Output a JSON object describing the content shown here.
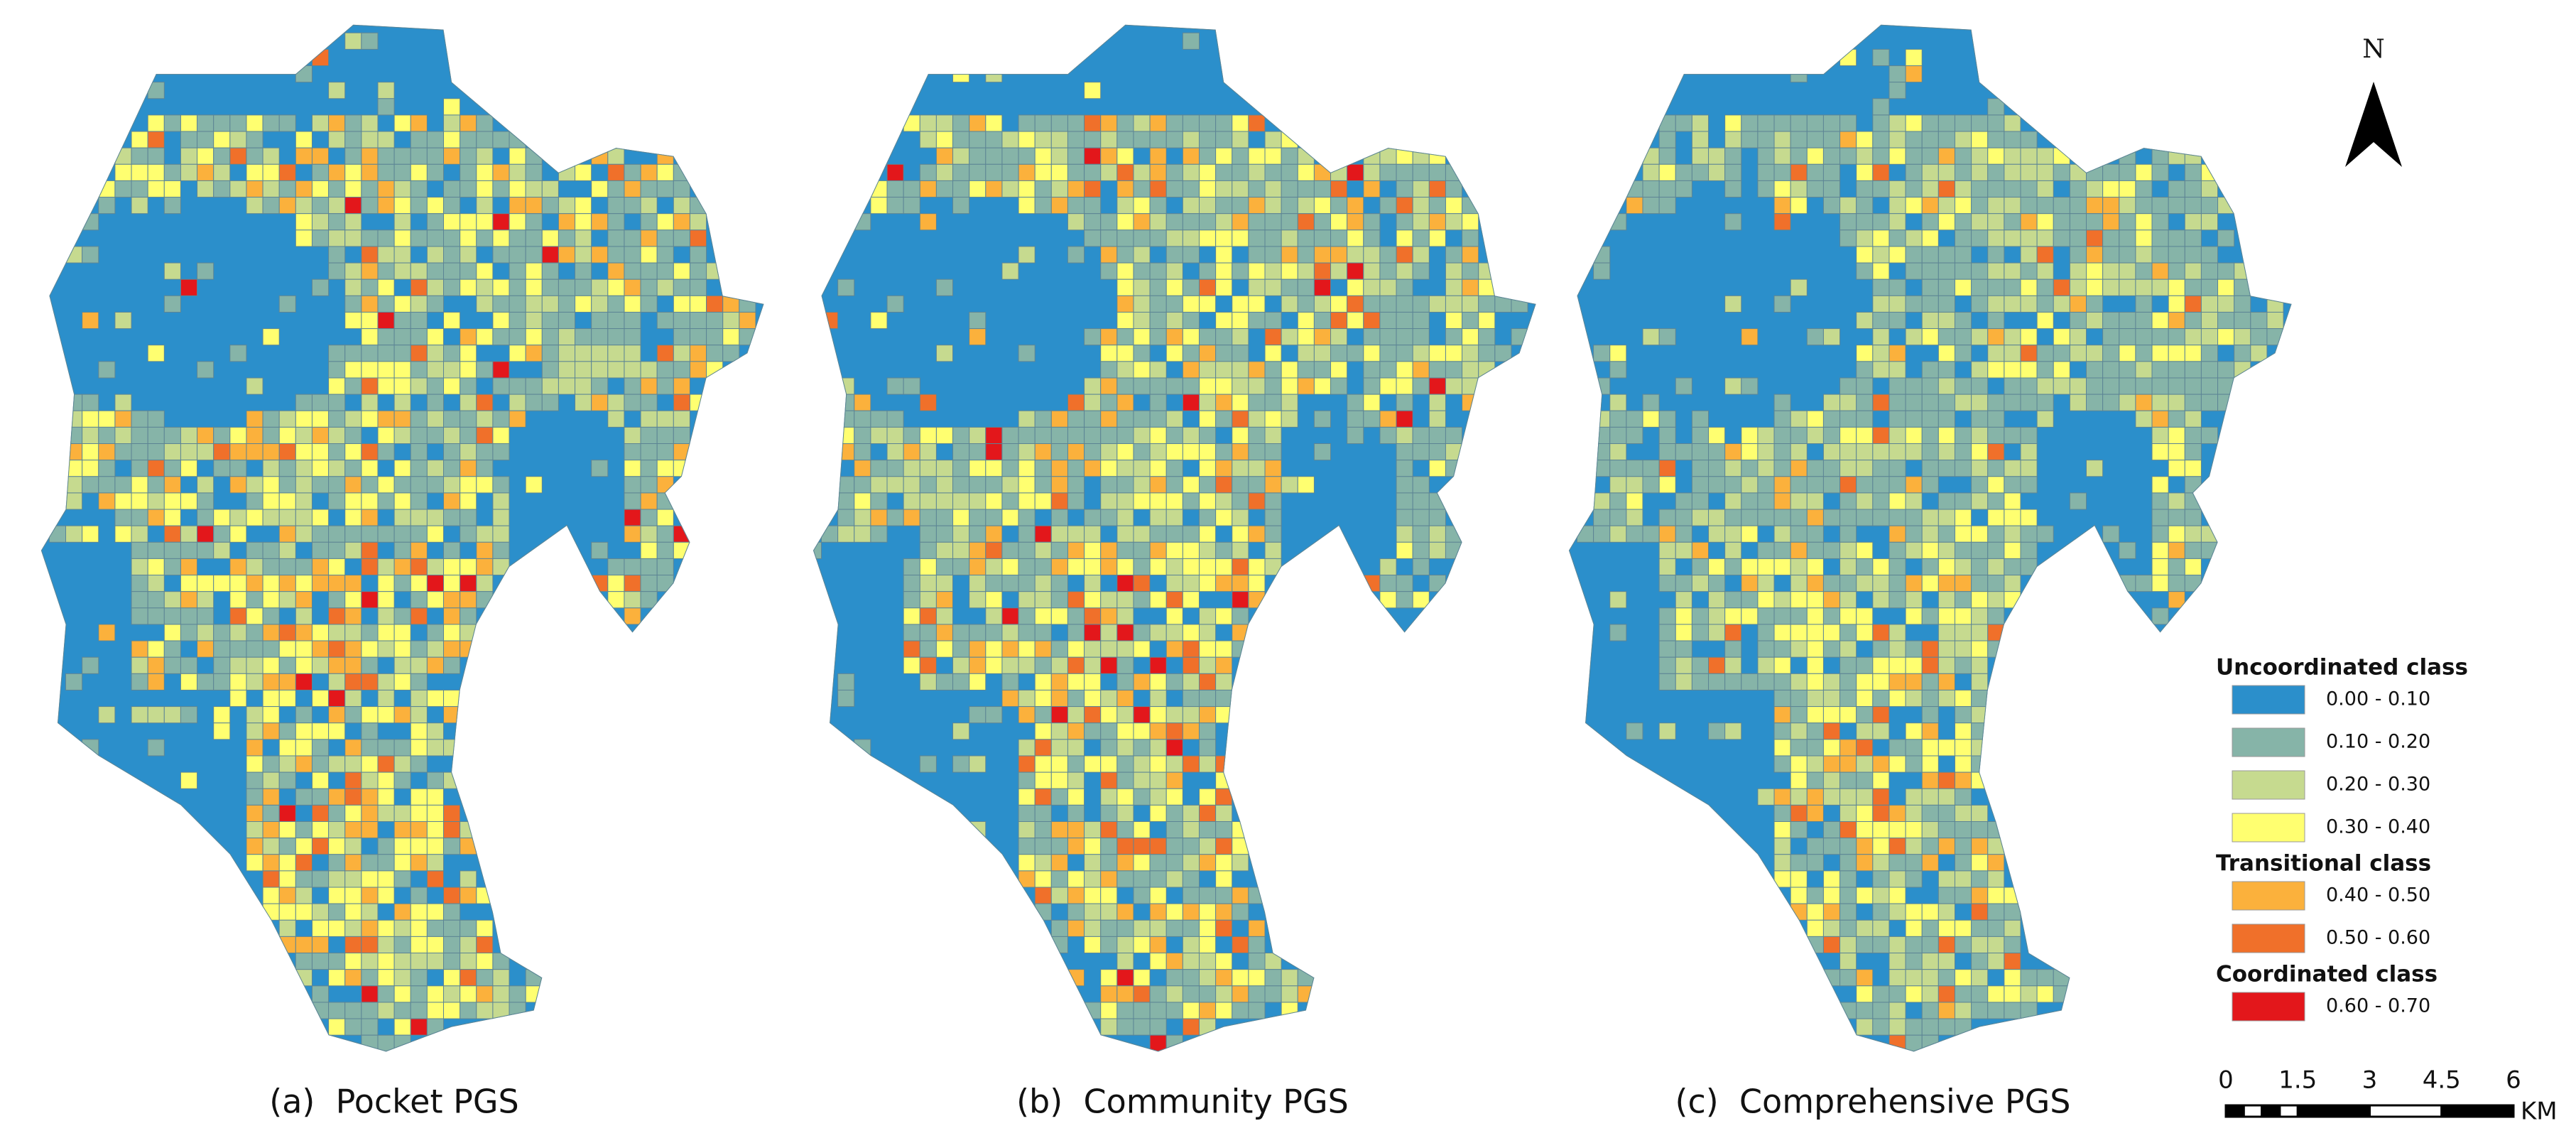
{
  "panels": [
    {
      "caption": "(a)  Pocket PGS"
    },
    {
      "caption": "(b)  Community PGS"
    },
    {
      "caption": "(c)  Comprehensive PGS"
    }
  ],
  "north_arrow": {
    "label": "N"
  },
  "legend": {
    "groups": [
      {
        "title": "Uncoordinated class",
        "items": [
          {
            "label": "0.00 - 0.10",
            "color": "#2b8fcb"
          },
          {
            "label": "0.10 - 0.20",
            "color": "#86b4a8"
          },
          {
            "label": "0.20 - 0.30",
            "color": "#c6da8f"
          },
          {
            "label": "0.30 - 0.40",
            "color": "#ffff70"
          }
        ]
      },
      {
        "title": "Transitional class",
        "items": [
          {
            "label": "0.40 - 0.50",
            "color": "#fbb13c"
          },
          {
            "label": "0.50 - 0.60",
            "color": "#f0702a"
          }
        ]
      },
      {
        "title": "Coordinated class",
        "items": [
          {
            "label": "0.60 - 0.70",
            "color": "#e3171b"
          }
        ]
      }
    ]
  },
  "scale_bar": {
    "ticks": [
      0,
      1.5,
      3,
      4.5,
      6
    ],
    "unit": "KM"
  }
}
